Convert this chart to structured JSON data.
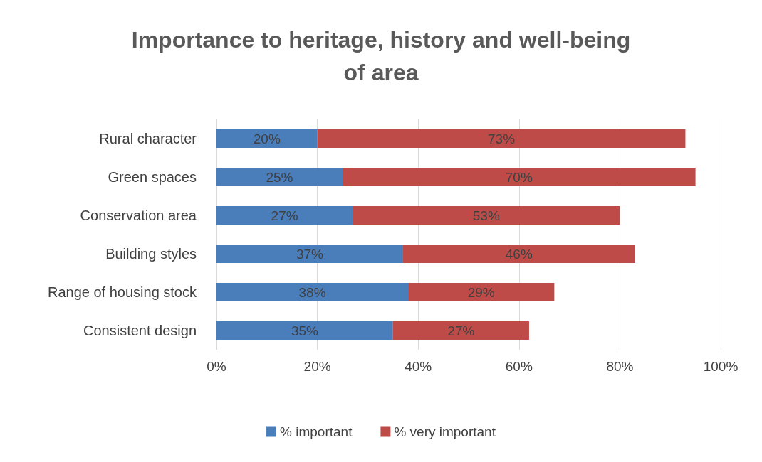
{
  "chart_data": {
    "type": "bar",
    "orientation": "horizontal",
    "stacked": true,
    "title": "Importance to heritage, history and well-being\nof area",
    "categories": [
      "Rural character",
      "Green spaces",
      "Conservation area",
      "Building styles",
      "Range of housing stock",
      "Consistent design"
    ],
    "series": [
      {
        "name": "% important",
        "color": "#4a7ebb",
        "values": [
          20,
          25,
          27,
          37,
          38,
          35
        ],
        "value_labels": [
          "20%",
          "25%",
          "27%",
          "37%",
          "38%",
          "35%"
        ]
      },
      {
        "name": "% very important",
        "color": "#be4b48",
        "values": [
          73,
          70,
          53,
          46,
          29,
          27
        ],
        "value_labels": [
          "73%",
          "70%",
          "53%",
          "46%",
          "29%",
          "27%"
        ]
      }
    ],
    "xlim": [
      0,
      100
    ],
    "xticks": [
      {
        "value": 0,
        "label": "0%"
      },
      {
        "value": 20,
        "label": "20%"
      },
      {
        "value": 40,
        "label": "40%"
      },
      {
        "value": 60,
        "label": "60%"
      },
      {
        "value": 80,
        "label": "80%"
      },
      {
        "value": 100,
        "label": "100%"
      }
    ],
    "grid": "x",
    "legend": "bottom"
  }
}
